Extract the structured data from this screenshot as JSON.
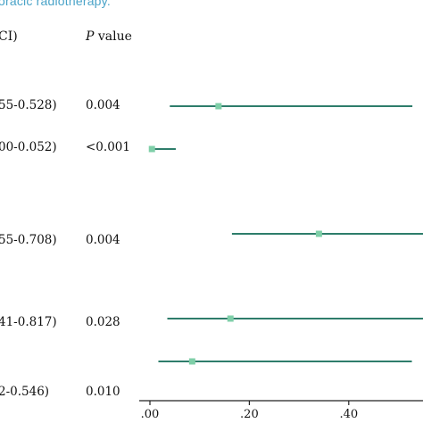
{
  "caption": "oracic radiotherapy.",
  "columns": {
    "ci_header": "CI)",
    "p_header_italic": "P",
    "p_header_rest": " value"
  },
  "rows": [
    {
      "ci": "55-0.528)",
      "p": "0.004"
    },
    {
      "ci": "00-0.052)",
      "p": "<0.001"
    },
    {
      "ci": "55-0.708)",
      "p": "0.004"
    },
    {
      "ci": "41-0.817)",
      "p": "0.028"
    },
    {
      "ci": "",
      "p": ""
    },
    {
      "ci": "2-0.546)",
      "p": "0.010"
    }
  ],
  "colors": {
    "line": "#2e7d6b",
    "marker": "#7fcfa8",
    "caption": "#4aa3c8"
  },
  "chart_data": {
    "type": "forest",
    "x_ticks": [
      ".00",
      ".20",
      ".40"
    ],
    "xlim": [
      0.0,
      0.55
    ],
    "rows": [
      {
        "estimate": 0.138,
        "low": 0.04,
        "high": 0.528
      },
      {
        "estimate": 0.004,
        "low": 0.0,
        "high": 0.052
      },
      {
        "estimate": 0.34,
        "low": 0.165,
        "high": 0.708
      },
      {
        "estimate": 0.162,
        "low": 0.035,
        "high": 0.817
      },
      {
        "estimate": 0.085,
        "low": 0.017,
        "high": 0.527
      },
      {
        "estimate": null,
        "low": null,
        "high": null
      }
    ]
  }
}
